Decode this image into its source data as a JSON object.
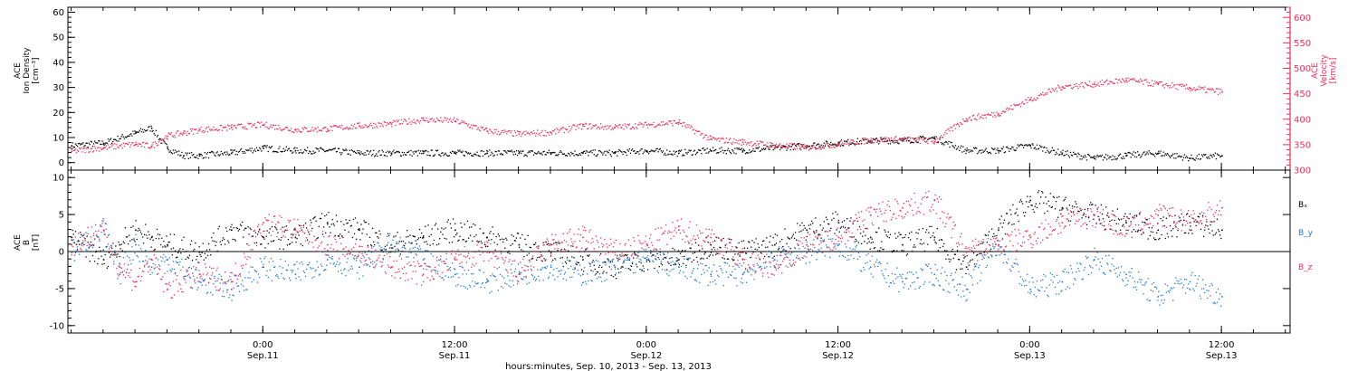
{
  "colors": {
    "black": "#000000",
    "blue": "#1f78d4",
    "red": "#e8305a",
    "axis": "#000000"
  },
  "time_axis": {
    "caption": "hours:minutes, Sep. 10, 2013 - Sep. 13, 2013",
    "ticks": [
      {
        "hours": 0,
        "time": "0:00",
        "date": "Sep.11"
      },
      {
        "hours": 12,
        "time": "12:00",
        "date": "Sep.11"
      },
      {
        "hours": 24,
        "time": "0:00",
        "date": "Sep.12"
      },
      {
        "hours": 36,
        "time": "12:00",
        "date": "Sep.12"
      },
      {
        "hours": 48,
        "time": "0:00",
        "date": "Sep.13"
      },
      {
        "hours": 60,
        "time": "12:00",
        "date": "Sep.13"
      }
    ],
    "xlim_hours_from_sep11": [
      -12.2,
      64.3
    ]
  },
  "chart_data": [
    {
      "type": "scatter",
      "panel": "plasma",
      "ylabel_left": [
        "ACE",
        "Ion Density",
        "[cm⁻³]"
      ],
      "ylabel_right": [
        "ACE",
        "Velocity",
        "[km/s]"
      ],
      "ylim_left": [
        -3,
        62
      ],
      "yticks_left": [
        0,
        10,
        20,
        30,
        40,
        50,
        60
      ],
      "ylim_right": [
        300,
        620
      ],
      "yticks_right": [
        300,
        350,
        400,
        450,
        500,
        550,
        600
      ],
      "x_unit": "hours from Sep. 11 00:00 UT",
      "series": [
        {
          "name": "",
          "axis": "left",
          "color": "#000000",
          "x": [
            -12,
            -10,
            -8,
            -7,
            -6,
            -5,
            -4,
            -2,
            0,
            2,
            4,
            6,
            8,
            10,
            12,
            14,
            16,
            18,
            20,
            22,
            24,
            26,
            28,
            30,
            32,
            34,
            36,
            38,
            40,
            42,
            44,
            46,
            48,
            50,
            52,
            54,
            56,
            58,
            60
          ],
          "y": [
            7,
            8,
            12,
            14,
            6,
            3,
            3,
            4,
            6,
            5,
            5,
            4,
            4,
            4,
            4,
            4,
            4,
            4,
            4,
            4,
            5,
            4,
            5,
            5,
            6,
            7,
            8,
            9,
            9,
            10,
            5,
            5,
            7,
            4,
            2,
            3,
            4,
            2,
            3
          ]
        },
        {
          "name": "",
          "axis": "right",
          "color": "#e8305a",
          "x": [
            -12,
            -10,
            -8,
            -7,
            -6,
            -5,
            -4,
            -2,
            0,
            2,
            4,
            6,
            8,
            10,
            12,
            14,
            16,
            18,
            20,
            22,
            24,
            26,
            28,
            30,
            32,
            34,
            36,
            38,
            40,
            42,
            44,
            46,
            48,
            50,
            52,
            54,
            56,
            58,
            60
          ],
          "y": [
            338,
            345,
            352,
            348,
            368,
            374,
            380,
            385,
            390,
            380,
            382,
            388,
            392,
            400,
            398,
            378,
            372,
            375,
            388,
            385,
            390,
            395,
            362,
            356,
            350,
            345,
            352,
            360,
            362,
            357,
            402,
            412,
            440,
            465,
            470,
            478,
            470,
            462,
            455
          ]
        }
      ]
    },
    {
      "type": "scatter",
      "panel": "magnetic-field",
      "ylabel_left": [
        "ACE",
        "B",
        "[nT]"
      ],
      "ylim": [
        -11,
        11
      ],
      "yticks": [
        -10,
        -5,
        0,
        5,
        10
      ],
      "x_unit": "hours from Sep. 11 00:00 UT",
      "series": [
        {
          "name": "Bₓ",
          "color": "#000000",
          "x": [
            -12,
            -10,
            -9,
            -8,
            -7,
            -6,
            -4,
            -2,
            0,
            2,
            4,
            6,
            8,
            10,
            12,
            14,
            16,
            18,
            20,
            22,
            24,
            26,
            28,
            30,
            32,
            34,
            36,
            38,
            40,
            42,
            44,
            46,
            48,
            50,
            52,
            54,
            56,
            58,
            60
          ],
          "y": [
            2,
            -1,
            1,
            3,
            2,
            1,
            0,
            3,
            2,
            2,
            4,
            3,
            1,
            2,
            3,
            2,
            1,
            0,
            -1,
            -2,
            -1,
            -1,
            1,
            0,
            1,
            3,
            4,
            2,
            1,
            2,
            -2,
            3,
            7,
            6,
            5,
            4,
            3,
            4,
            3
          ]
        },
        {
          "name": "B_y",
          "color": "#1f78d4",
          "x": [
            -12,
            -10,
            -9,
            -8,
            -7,
            -6,
            -4,
            -2,
            0,
            2,
            4,
            6,
            8,
            10,
            12,
            14,
            16,
            18,
            20,
            22,
            24,
            26,
            28,
            30,
            32,
            34,
            36,
            38,
            40,
            42,
            44,
            46,
            48,
            50,
            52,
            54,
            56,
            58,
            60
          ],
          "y": [
            0,
            3,
            -3,
            1,
            -2,
            -1,
            -4,
            -5,
            -2,
            -3,
            -1,
            -2,
            1,
            -1,
            -3,
            -4,
            -3,
            -2,
            -3,
            -2,
            -1,
            -2,
            -3,
            -3,
            -1,
            0,
            1,
            -2,
            -4,
            -3,
            -5,
            1,
            -5,
            -4,
            -1,
            -3,
            -6,
            -4,
            -6
          ]
        },
        {
          "name": "B_z",
          "color": "#e8305a",
          "x": [
            -12,
            -10,
            -9,
            -8,
            -7,
            -6,
            -4,
            -2,
            0,
            2,
            4,
            6,
            8,
            10,
            12,
            14,
            16,
            18,
            20,
            22,
            24,
            26,
            28,
            30,
            32,
            34,
            36,
            38,
            40,
            42,
            44,
            46,
            48,
            50,
            52,
            54,
            56,
            58,
            60
          ],
          "y": [
            1,
            3,
            -2,
            -4,
            -1,
            -5,
            -3,
            -4,
            4,
            3,
            1,
            0,
            -2,
            -3,
            -1,
            0,
            -3,
            1,
            2,
            0,
            1,
            3,
            2,
            -1,
            -2,
            1,
            2,
            5,
            6,
            7,
            0,
            1,
            2,
            4,
            5,
            3,
            5,
            4,
            6
          ]
        }
      ],
      "legend": [
        "Bₓ",
        "B_y",
        "B_z"
      ],
      "legend_placement": "right"
    }
  ]
}
